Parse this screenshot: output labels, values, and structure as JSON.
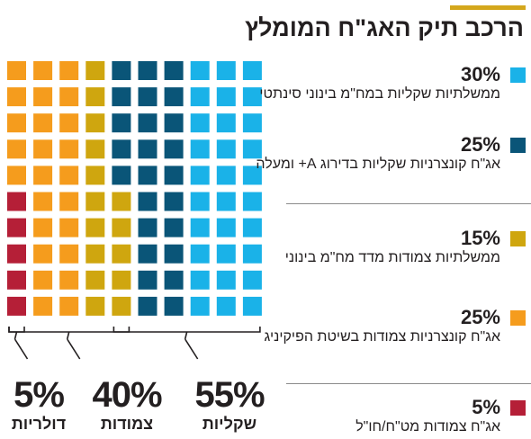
{
  "title": "הרכב תיק האג\"ח המומלץ",
  "colors": {
    "accent": "#d4a71c",
    "bracket": "#231f20",
    "divider": "#8a8a8a"
  },
  "chart_data": {
    "type": "waffle",
    "grid": {
      "rows": 10,
      "cols": 10
    },
    "fill_order": "right-to-left columns, top-to-bottom",
    "segments": [
      {
        "name": "ממשלתיות שקליות במח\"מ בינוני סינתטי",
        "pct_label": "30%",
        "value": 30,
        "color": "#1ab2e8"
      },
      {
        "name": "אג\"ח קונצרניות שקליות בדירוג A+ ומעלה",
        "pct_label": "25%",
        "value": 25,
        "color": "#0a5578"
      },
      {
        "name": "ממשלתיות צמודות מדד מח\"מ בינוני",
        "pct_label": "15%",
        "value": 15,
        "color": "#cfa60f"
      },
      {
        "name": "אג\"ח קונצרניות צמודות בשיטת הפיקיניג",
        "pct_label": "25%",
        "value": 25,
        "color": "#f59c1d"
      },
      {
        "name": "אג\"ח צמודות מט\"ח/חו\"ל",
        "pct_label": "5%",
        "value": 5,
        "color": "#b51f37"
      }
    ],
    "groups": [
      {
        "label": "שקליות",
        "pct_label": "55%",
        "value": 55,
        "segments": [
          0,
          1
        ]
      },
      {
        "label": "צמודות",
        "pct_label": "40%",
        "value": 40,
        "segments": [
          2,
          3
        ]
      },
      {
        "label": "דולריות",
        "pct_label": "5%",
        "value": 5,
        "segments": [
          4
        ]
      }
    ]
  }
}
